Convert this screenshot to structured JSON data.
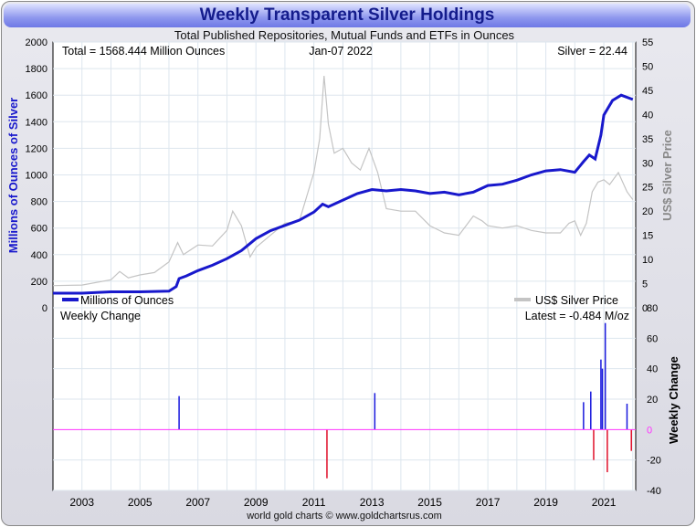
{
  "header": {
    "title": "Weekly Transparent Silver Holdings",
    "subtitle": "Total Published Repositories, Mutual Funds and ETFs in Ounces",
    "footer": "world gold charts © www.goldchartsrus.com"
  },
  "colors": {
    "holdings": "#1818cc",
    "silver_price": "#c4c4c4",
    "positive_change": "#1818dd",
    "negative_change": "#e0102a",
    "zero_line": "#ff33ff",
    "left_axis_label": "#1818cc",
    "right_axis_label": "#888888"
  },
  "chart_data": [
    {
      "type": "line",
      "panel": "top",
      "annotations": {
        "total": "Total = 1568.444 Million Ounces",
        "date": "Jan-07  2022",
        "silver": "Silver = 22.44"
      },
      "ylabel_left": "Millions of Ounces of Silver",
      "ylabel_right": "US$ Silver Price",
      "ylim_left": [
        0,
        2000
      ],
      "ylim_right": [
        0,
        55
      ],
      "xlim": [
        2002,
        2022.1
      ],
      "yticks_left": [
        0,
        200,
        400,
        600,
        800,
        1000,
        1200,
        1400,
        1600,
        1800,
        2000
      ],
      "yticks_right": [
        0,
        5,
        10,
        15,
        20,
        25,
        30,
        35,
        40,
        45,
        50,
        55
      ],
      "grid": true,
      "legend": [
        "Millions of Ounces",
        "US$ Silver Price"
      ],
      "series": [
        {
          "name": "Millions of Ounces",
          "axis": "left",
          "x": [
            2002.0,
            2003.0,
            2003.5,
            2004.0,
            2005.0,
            2006.0,
            2006.25,
            2006.35,
            2006.6,
            2007.0,
            2007.5,
            2008.0,
            2008.5,
            2009.0,
            2009.5,
            2010.0,
            2010.5,
            2011.0,
            2011.3,
            2011.5,
            2012.0,
            2012.5,
            2013.0,
            2013.5,
            2014.0,
            2014.5,
            2015.0,
            2015.5,
            2016.0,
            2016.5,
            2017.0,
            2017.5,
            2018.0,
            2018.5,
            2019.0,
            2019.5,
            2020.0,
            2020.3,
            2020.5,
            2020.7,
            2020.9,
            2021.0,
            2021.3,
            2021.6,
            2022.0
          ],
          "values": [
            110,
            110,
            115,
            120,
            120,
            125,
            160,
            220,
            240,
            280,
            320,
            370,
            430,
            520,
            580,
            620,
            660,
            720,
            780,
            760,
            810,
            860,
            890,
            880,
            890,
            880,
            860,
            870,
            850,
            870,
            920,
            930,
            960,
            1000,
            1030,
            1040,
            1020,
            1100,
            1150,
            1120,
            1300,
            1450,
            1560,
            1600,
            1568
          ]
        },
        {
          "name": "US$ Silver Price",
          "axis": "right",
          "x": [
            2002.0,
            2003.0,
            2004.0,
            2004.3,
            2004.6,
            2005.0,
            2005.5,
            2006.0,
            2006.3,
            2006.5,
            2007.0,
            2007.5,
            2008.0,
            2008.2,
            2008.5,
            2008.8,
            2009.0,
            2009.5,
            2010.0,
            2010.5,
            2010.8,
            2011.0,
            2011.2,
            2011.35,
            2011.5,
            2011.7,
            2012.0,
            2012.3,
            2012.6,
            2012.9,
            2013.2,
            2013.5,
            2014.0,
            2014.5,
            2015.0,
            2015.5,
            2016.0,
            2016.5,
            2016.8,
            2017.0,
            2017.5,
            2018.0,
            2018.5,
            2019.0,
            2019.5,
            2019.8,
            2020.0,
            2020.2,
            2020.4,
            2020.6,
            2020.8,
            2021.0,
            2021.2,
            2021.5,
            2021.8,
            2022.0
          ],
          "values": [
            4.6,
            4.7,
            5.8,
            7.5,
            6.2,
            6.8,
            7.3,
            9.5,
            13.5,
            11.0,
            13.0,
            12.8,
            16.0,
            20.0,
            17.0,
            10.5,
            12.5,
            15.0,
            17.5,
            18.0,
            24.0,
            28.0,
            35.0,
            48.0,
            38.0,
            32.0,
            33.0,
            30.0,
            28.5,
            33.0,
            28.0,
            20.5,
            20.0,
            20.0,
            17.0,
            15.5,
            15.0,
            19.0,
            18.0,
            17.0,
            16.5,
            17.0,
            16.0,
            15.5,
            15.5,
            17.5,
            18.0,
            15.0,
            17.5,
            24.0,
            26.0,
            26.5,
            25.5,
            28.0,
            24.0,
            22.4
          ]
        }
      ]
    },
    {
      "type": "bar",
      "panel": "bottom",
      "title_left": "Weekly Change",
      "annotation": "Latest = -0.484 M/oz",
      "ylabel": "Weekly Change",
      "ylim": [
        -40,
        80
      ],
      "yticks": [
        -40,
        -20,
        0,
        20,
        40,
        60,
        80
      ],
      "xticks": [
        "2003",
        "2005",
        "2007",
        "2009",
        "2011",
        "2013",
        "2015",
        "2017",
        "2019",
        "2021"
      ],
      "x": [
        2006.35,
        2011.45,
        2013.1,
        2020.3,
        2020.55,
        2020.65,
        2020.9,
        2020.95,
        2021.05,
        2021.12,
        2021.8,
        2021.95
      ],
      "values": [
        22,
        -32,
        24,
        18,
        25,
        -20,
        46,
        40,
        70,
        -28,
        17,
        -14
      ]
    }
  ]
}
